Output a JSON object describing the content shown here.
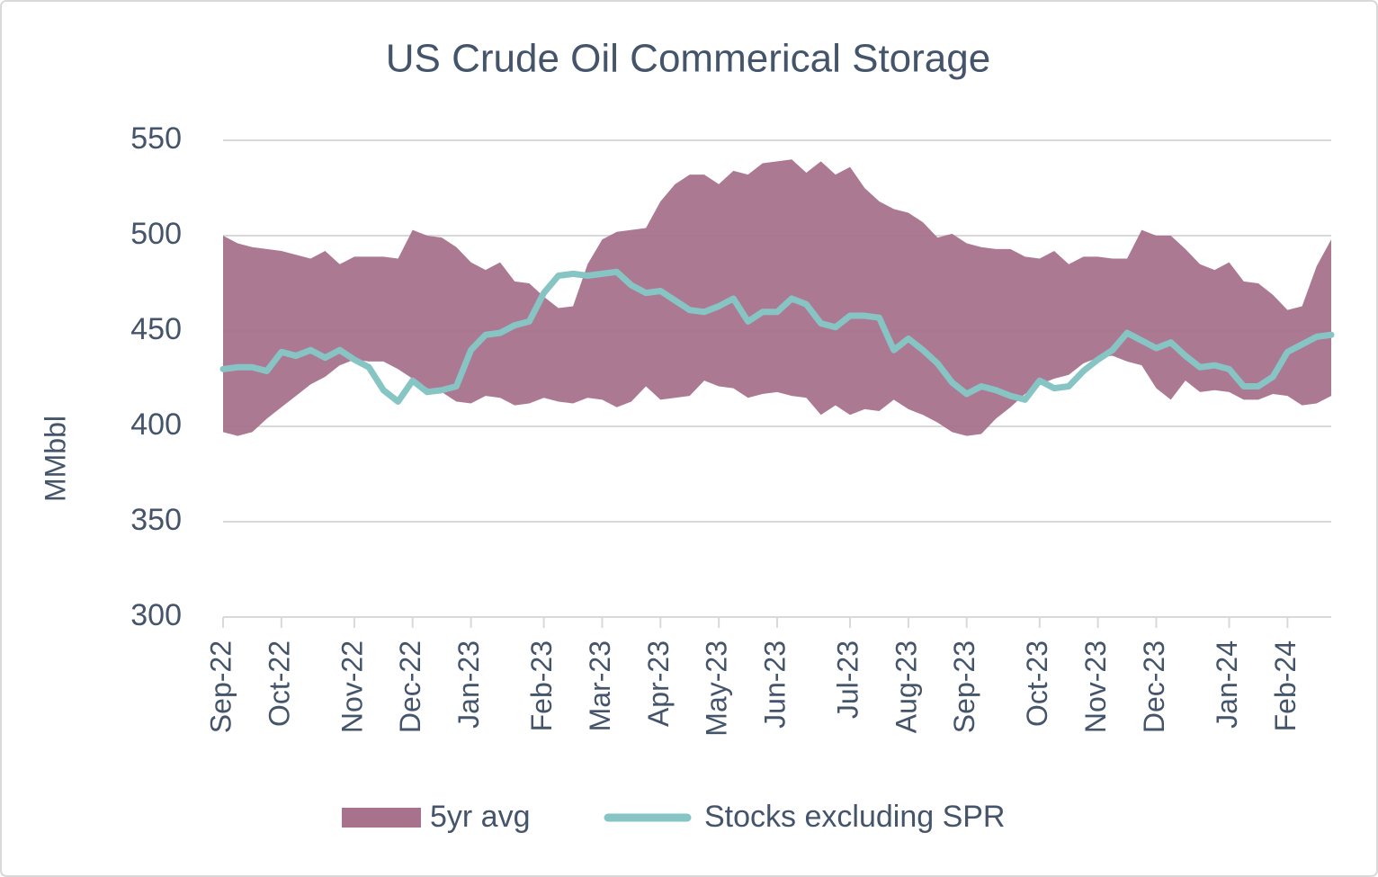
{
  "chart_data": {
    "type": "band-line",
    "title": "US Crude Oil Commerical Storage",
    "y_label": "MMbbl",
    "categories": [
      "Sep-22",
      null,
      null,
      null,
      "Oct-22",
      null,
      null,
      null,
      null,
      "Nov-22",
      null,
      null,
      null,
      "Dec-22",
      null,
      null,
      null,
      "Jan-23",
      null,
      null,
      null,
      null,
      "Feb-23",
      null,
      null,
      null,
      "Mar-23",
      null,
      null,
      null,
      "Apr-23",
      null,
      null,
      null,
      "May-23",
      null,
      null,
      null,
      "Jun-23",
      null,
      null,
      null,
      null,
      "Jul-23",
      null,
      null,
      null,
      "Aug-23",
      null,
      null,
      null,
      "Sep-23",
      null,
      null,
      null,
      null,
      "Oct-23",
      null,
      null,
      null,
      "Nov-23",
      null,
      null,
      null,
      "Dec-23",
      null,
      null,
      null,
      null,
      "Jan-24",
      null,
      null,
      null,
      "Feb-24",
      null,
      null,
      null
    ],
    "series": [
      {
        "name": "5yr avg",
        "color": "#a8728d",
        "high": [
          500,
          496,
          494,
          493,
          492,
          490,
          488,
          492,
          485,
          489,
          489,
          489,
          488,
          503,
          500,
          499,
          494,
          486,
          482,
          486,
          476,
          475,
          468,
          462,
          463,
          485,
          498,
          502,
          503,
          504,
          518,
          527,
          532,
          532,
          527,
          534,
          532,
          538,
          539,
          540,
          533,
          539,
          532,
          536,
          525,
          518,
          514,
          512,
          507,
          499,
          501,
          496,
          494,
          493,
          493,
          489,
          488,
          492,
          485,
          489,
          489,
          488,
          488,
          503,
          500,
          500,
          493,
          485,
          482,
          486,
          476,
          475,
          469,
          461,
          463,
          484,
          498
        ],
        "low": [
          397,
          395,
          397,
          404,
          410,
          416,
          422,
          426,
          432,
          435,
          434,
          434,
          430,
          425,
          420,
          418,
          413,
          412,
          416,
          415,
          411,
          412,
          415,
          413,
          412,
          415,
          414,
          410,
          413,
          421,
          414,
          415,
          416,
          424,
          421,
          420,
          415,
          417,
          418,
          416,
          415,
          406,
          411,
          406,
          409,
          408,
          414,
          409,
          406,
          402,
          397,
          395,
          396,
          404,
          410,
          417,
          422,
          425,
          427,
          433,
          436,
          437,
          434,
          432,
          420,
          414,
          424,
          418,
          419,
          418,
          414,
          414,
          417,
          416,
          411,
          412,
          416
        ]
      },
      {
        "name": "Stocks excluding SPR",
        "color": "#86c5c4",
        "values": [
          430,
          431,
          431,
          429,
          439,
          437,
          440,
          436,
          440,
          435,
          431,
          419,
          413,
          424,
          418,
          419,
          421,
          440,
          448,
          449,
          453,
          455,
          470,
          479,
          480,
          479,
          480,
          481,
          474,
          470,
          471,
          466,
          461,
          460,
          463,
          467,
          455,
          460,
          460,
          467,
          464,
          454,
          452,
          458,
          458,
          457,
          440,
          446,
          440,
          433,
          423,
          417,
          421,
          419,
          416,
          414,
          424,
          420,
          421,
          429,
          435,
          440,
          449,
          445,
          441,
          444,
          437,
          431,
          432,
          430,
          421,
          421,
          426,
          439,
          443,
          447,
          448
        ]
      }
    ],
    "ylim": [
      300,
      550
    ],
    "yticks": [
      300,
      350,
      400,
      450,
      500,
      550
    ],
    "grid": true
  }
}
